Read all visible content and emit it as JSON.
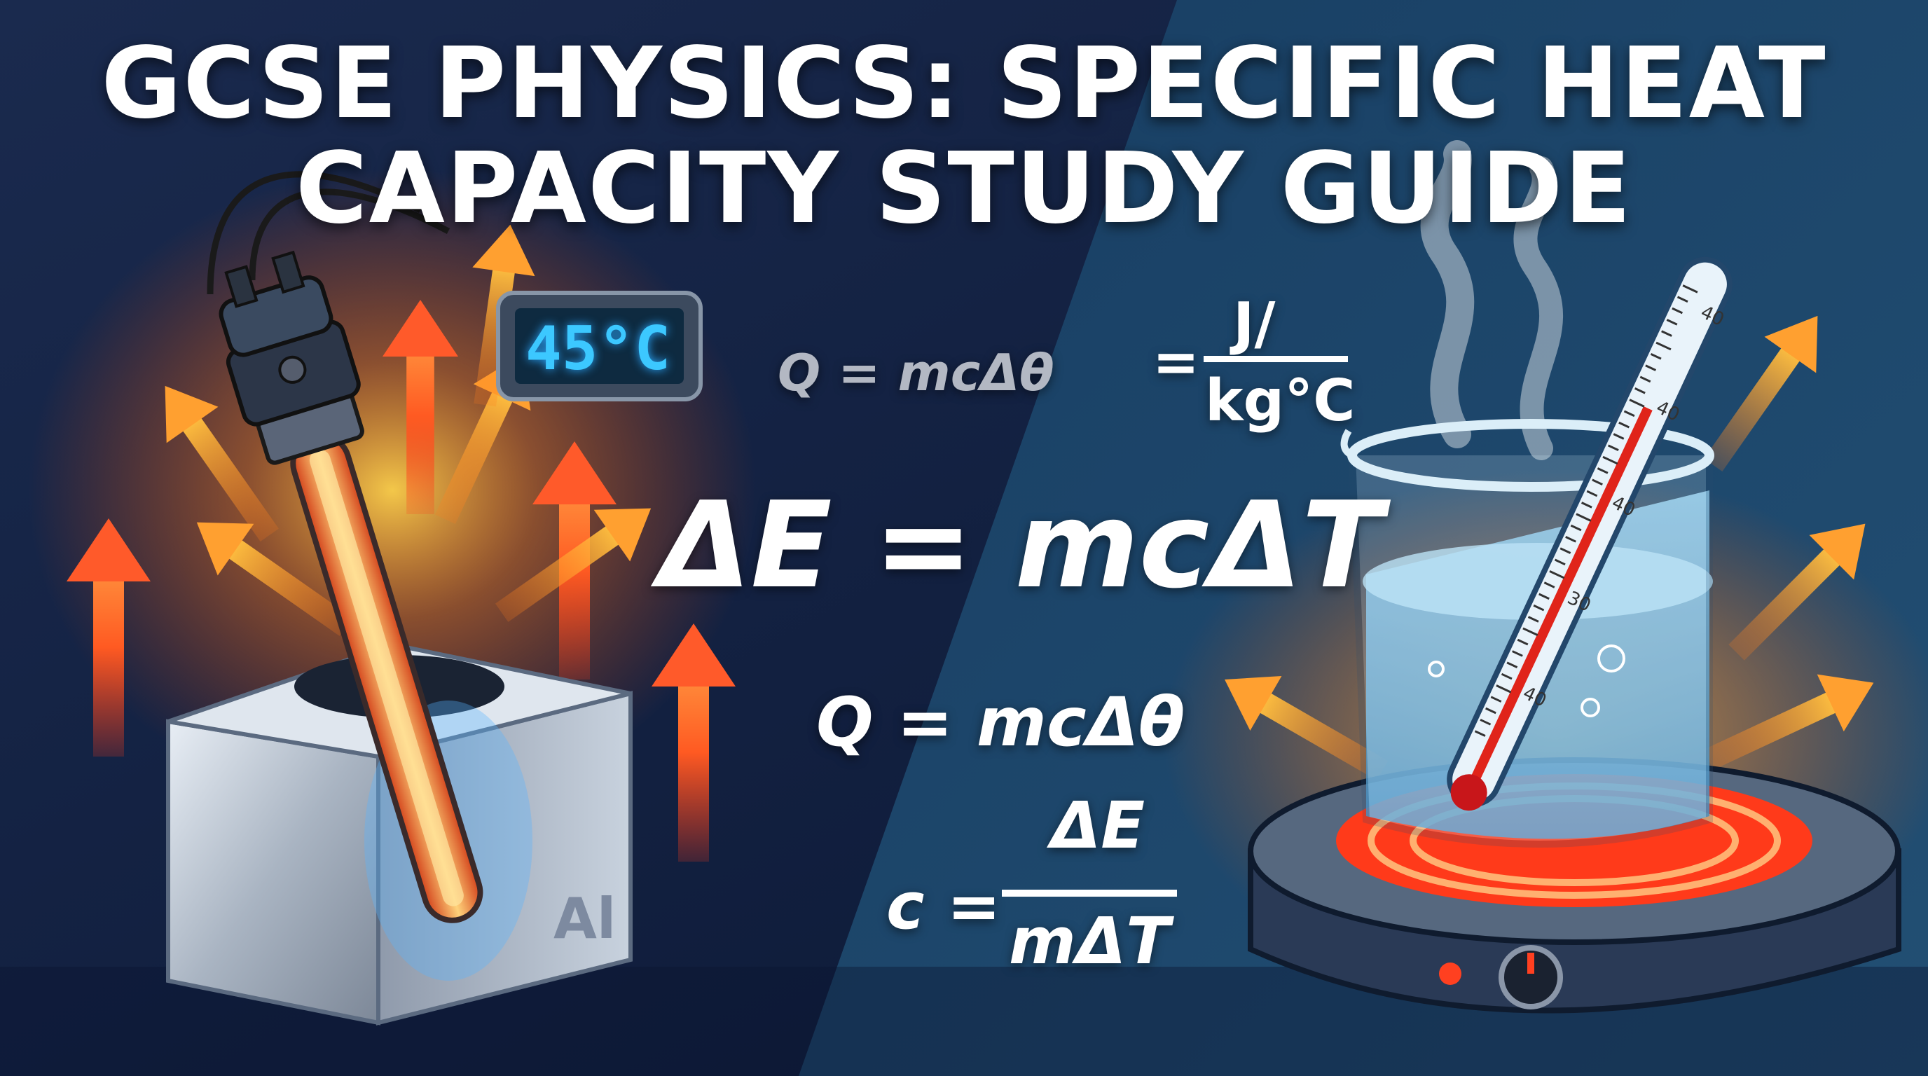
{
  "title": {
    "line1": "GCSE PHYSICS: SPECIFIC HEAT",
    "line2": "CAPACITY STUDY GUIDE"
  },
  "display": {
    "temperature": "45°C"
  },
  "block": {
    "label": "Al"
  },
  "equations": {
    "small_q": "Q = mcΔθ",
    "main": "ΔE = mcΔT",
    "q": "Q = mcΔθ",
    "c_lhs": "c =",
    "c_num": "ΔE",
    "c_den": "mΔT",
    "unit_eq": "=",
    "unit_num": "J/",
    "unit_den": "kg°C"
  },
  "thermometer": {
    "scale_labels": [
      "40",
      "40",
      "40",
      "30",
      "40"
    ]
  },
  "colors": {
    "bg_left": "#0d1c3a",
    "bg_right": "#1d4a70",
    "heat": "#ff6a1a",
    "water": "#7cc4ee"
  }
}
